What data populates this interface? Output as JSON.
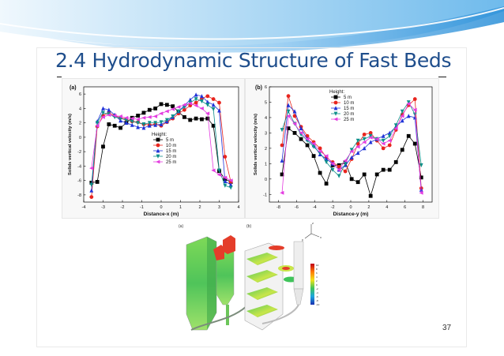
{
  "slide": {
    "title": "2.4 Hydrodynamic Structure of Fast Beds",
    "page_number": "37",
    "accent_color": "#1f4e8c"
  },
  "chart_data": [
    {
      "type": "line",
      "panel_label": "(a)",
      "xlabel": "Distance-x (m)",
      "ylabel": "Solids vertical velocity (m/s)",
      "xlim": [
        -4,
        4
      ],
      "ylim": [
        -9,
        7
      ],
      "xticks": [
        -4,
        -3,
        -2,
        -1,
        0,
        1,
        2,
        3,
        4
      ],
      "yticks": [
        -8,
        -6,
        -4,
        -2,
        0,
        2,
        4,
        6
      ],
      "grid": false,
      "legend_title": "Height:",
      "legend_position": "center",
      "x": [
        -3.6,
        -3.3,
        -3.0,
        -2.7,
        -2.4,
        -2.1,
        -1.8,
        -1.5,
        -1.2,
        -0.9,
        -0.6,
        -0.3,
        0.0,
        0.3,
        0.6,
        0.9,
        1.2,
        1.5,
        1.8,
        2.1,
        2.4,
        2.7,
        3.0,
        3.3,
        3.6
      ],
      "series": [
        {
          "name": "5 m",
          "color": "#000000",
          "marker": "square",
          "values": [
            -6.3,
            -6.2,
            -1.3,
            1.8,
            1.6,
            1.3,
            2.0,
            2.7,
            3.0,
            3.4,
            3.8,
            4.0,
            4.6,
            4.5,
            4.3,
            3.5,
            2.8,
            2.4,
            2.6,
            2.5,
            2.6,
            1.6,
            -4.7,
            -5.8,
            -6.2
          ]
        },
        {
          "name": "10 m",
          "color": "#e8251e",
          "marker": "circle",
          "values": [
            -8.3,
            1.5,
            3.0,
            3.4,
            3.0,
            2.7,
            2.5,
            2.2,
            2.1,
            1.8,
            1.7,
            1.8,
            1.6,
            2.1,
            2.6,
            3.3,
            3.8,
            4.4,
            4.8,
            5.4,
            5.7,
            5.3,
            4.8,
            -2.7,
            -6.2
          ]
        },
        {
          "name": "15 m",
          "color": "#1f32d8",
          "marker": "triangle",
          "values": [
            -7.4,
            2.2,
            4.0,
            3.8,
            3.1,
            2.3,
            2.0,
            1.7,
            1.4,
            1.3,
            1.6,
            1.7,
            1.8,
            2.2,
            2.8,
            3.6,
            4.4,
            5.2,
            5.9,
            5.7,
            4.9,
            4.5,
            3.7,
            -6.1,
            -6.6
          ]
        },
        {
          "name": "20 m",
          "color": "#0e8f8a",
          "marker": "triangle-down",
          "values": [
            -6.6,
            2.0,
            3.4,
            3.2,
            2.8,
            2.6,
            2.4,
            2.2,
            2.0,
            1.8,
            2.0,
            2.0,
            2.1,
            2.4,
            2.9,
            3.6,
            4.2,
            4.8,
            5.3,
            5.0,
            4.5,
            3.9,
            -4.6,
            -6.7,
            -7.0
          ]
        },
        {
          "name": "25 m",
          "color": "#e43ce0",
          "marker": "triangle-left",
          "values": [
            -4.3,
            1.6,
            2.8,
            3.1,
            3.0,
            2.9,
            2.7,
            2.6,
            2.5,
            2.7,
            2.8,
            2.9,
            3.3,
            3.6,
            3.9,
            4.2,
            4.5,
            4.7,
            4.4,
            4.0,
            3.3,
            -4.6,
            -5.2,
            -5.6,
            -6.0
          ]
        }
      ]
    },
    {
      "type": "line",
      "panel_label": "(b)",
      "xlabel": "Distance-y (m)",
      "ylabel": "Solids vertical velocity (m/s)",
      "xlim": [
        -9,
        9
      ],
      "ylim": [
        -1.5,
        6
      ],
      "xticks": [
        -8,
        -6,
        -4,
        -2,
        0,
        2,
        4,
        6,
        8
      ],
      "yticks": [
        -1,
        0,
        1,
        2,
        3,
        4,
        5,
        6
      ],
      "grid": false,
      "legend_title": "Height:",
      "legend_position": "top-right",
      "x": [
        -7.6,
        -6.9,
        -6.2,
        -5.5,
        -4.8,
        -4.1,
        -3.4,
        -2.7,
        -2.0,
        -1.3,
        -0.6,
        0.1,
        0.8,
        1.5,
        2.2,
        2.9,
        3.6,
        4.3,
        5.0,
        5.7,
        6.4,
        7.1,
        7.8
      ],
      "series": [
        {
          "name": "5 m",
          "color": "#000000",
          "marker": "square",
          "values": [
            0.3,
            3.3,
            3.0,
            2.6,
            2.2,
            1.5,
            0.4,
            -0.3,
            0.9,
            0.9,
            1.1,
            0.0,
            -0.2,
            0.3,
            -1.1,
            0.3,
            0.6,
            0.6,
            1.1,
            1.9,
            2.8,
            2.3,
            0.1
          ]
        },
        {
          "name": "10 m",
          "color": "#e8251e",
          "marker": "circle",
          "values": [
            2.2,
            5.4,
            4.1,
            3.4,
            2.8,
            2.4,
            2.0,
            1.4,
            1.1,
            0.8,
            0.5,
            1.3,
            2.3,
            2.9,
            3.0,
            2.5,
            2.0,
            2.2,
            3.2,
            4.2,
            4.8,
            5.2,
            -0.6
          ]
        },
        {
          "name": "15 m",
          "color": "#1f32d8",
          "marker": "triangle",
          "values": [
            1.2,
            4.8,
            4.4,
            3.3,
            2.6,
            2.2,
            1.6,
            1.3,
            1.0,
            0.6,
            0.9,
            1.4,
            1.7,
            2.0,
            2.4,
            2.6,
            2.8,
            3.0,
            3.4,
            3.8,
            4.1,
            4.0,
            -0.7
          ]
        },
        {
          "name": "20 m",
          "color": "#0e8f8a",
          "marker": "triangle-down",
          "values": [
            3.2,
            4.4,
            3.6,
            2.9,
            2.5,
            2.1,
            1.7,
            1.1,
            0.6,
            0.2,
            1.0,
            1.9,
            2.5,
            2.6,
            2.8,
            2.6,
            2.5,
            2.8,
            3.5,
            4.4,
            5.0,
            4.2,
            0.9
          ]
        },
        {
          "name": "25 m",
          "color": "#e43ce0",
          "marker": "triangle-left",
          "values": [
            -0.9,
            4.1,
            3.6,
            3.0,
            2.6,
            2.3,
            1.8,
            1.5,
            1.0,
            0.6,
            1.2,
            1.8,
            2.1,
            2.4,
            2.7,
            2.6,
            2.3,
            2.5,
            3.3,
            4.1,
            4.9,
            4.5,
            -0.9
          ]
        }
      ]
    }
  ],
  "render_figure": {
    "panel_labels": [
      "(a)",
      "(b)"
    ],
    "colorbar_ticks": [
      "10",
      "8",
      "6",
      "4",
      "2",
      "0",
      "-2",
      "-4",
      "-6",
      "-8",
      "-10"
    ],
    "axis_labels": [
      "z",
      "x",
      "y"
    ]
  }
}
